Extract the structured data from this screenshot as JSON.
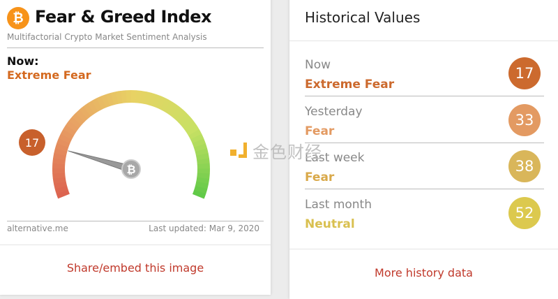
{
  "left": {
    "title": "Fear & Greed Index",
    "subtitle": "Multifactorial Crypto Market Sentiment Analysis",
    "now_label": "Now:",
    "now_value": "Extreme Fear",
    "now_color": "#d4691f",
    "gauge": {
      "value": 17,
      "min": 0,
      "max": 100,
      "badge": "17",
      "badge_color": "#c8602c"
    },
    "source": "alternative.me",
    "updated": "Last updated: Mar 9, 2020",
    "share_label": "Share/embed this image",
    "btc_icon": "bitcoin-icon"
  },
  "right": {
    "title": "Historical Values",
    "rows": [
      {
        "label": "Now",
        "classification": "Extreme Fear",
        "value": "17",
        "color": "#cc6a2e",
        "text_color": "#cc6a2e"
      },
      {
        "label": "Yesterday",
        "classification": "Fear",
        "value": "33",
        "color": "#e39a62",
        "text_color": "#e39a62"
      },
      {
        "label": "Last week",
        "classification": "Fear",
        "value": "38",
        "color": "#d9b65a",
        "text_color": "#d9a94a"
      },
      {
        "label": "Last month",
        "classification": "Neutral",
        "value": "52",
        "color": "#dcc94e",
        "text_color": "#d9c050"
      }
    ],
    "more_label": "More history data"
  },
  "watermark": {
    "text": "金色财经"
  }
}
